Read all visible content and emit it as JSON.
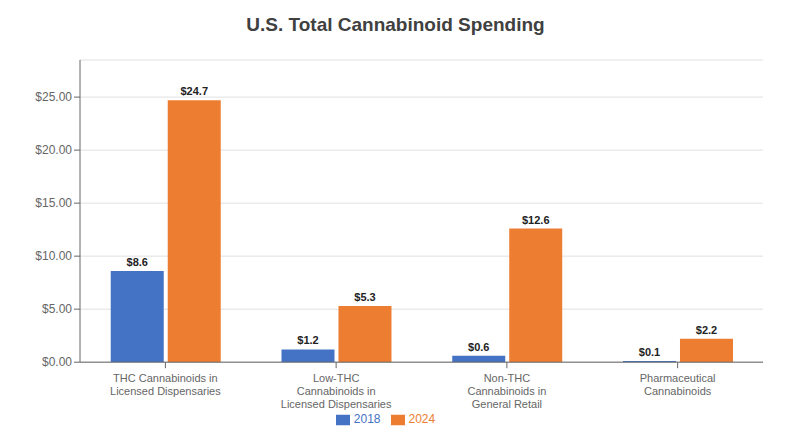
{
  "chart_data": {
    "type": "bar",
    "title": "U.S. Total Cannabinoid Spending",
    "categories": [
      "THC Cannabinoids in\nLicensed Dispensaries",
      "Low-THC\nCannabinoids in\nLicensed Dispensaries",
      "Non-THC\nCannabinoids in\nGeneral Retail",
      "Pharmaceutical\nCannabinoids"
    ],
    "series": [
      {
        "name": "2018",
        "color": "#4472C4",
        "values": [
          8.6,
          1.2,
          0.6,
          0.1
        ],
        "value_labels": [
          "$8.6",
          "$1.2",
          "$0.6",
          "$0.1"
        ]
      },
      {
        "name": "2024",
        "color": "#ED7D31",
        "values": [
          24.7,
          5.3,
          12.6,
          2.2
        ],
        "value_labels": [
          "$24.7",
          "$5.3",
          "$12.6",
          "$2.2"
        ]
      }
    ],
    "ylim": [
      0,
      28.5
    ],
    "yticks": [
      {
        "value": 0,
        "label": "$0.00"
      },
      {
        "value": 5,
        "label": "$5.00"
      },
      {
        "value": 10,
        "label": "$10.00"
      },
      {
        "value": 15,
        "label": "$15.00"
      },
      {
        "value": 20,
        "label": "$20.00"
      },
      {
        "value": 25,
        "label": "$25.00"
      }
    ],
    "grid": true,
    "legend": "bottom",
    "data_labels": true
  }
}
